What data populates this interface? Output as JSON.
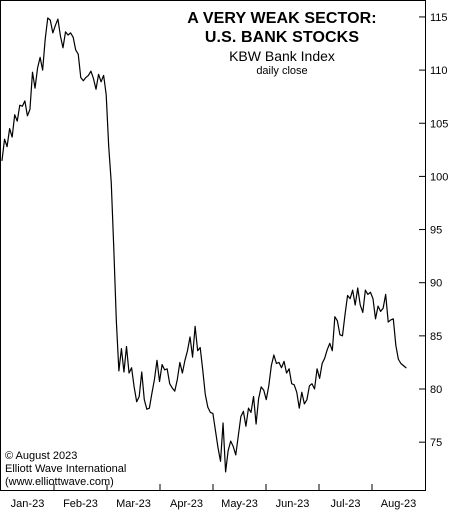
{
  "chart_data": {
    "type": "line",
    "title_lines": [
      "A VERY WEAK SECTOR:",
      "U.S. BANK STOCKS"
    ],
    "subtitle": "KBW Bank Index",
    "subtitle_small": "daily close",
    "xlabel": "",
    "ylabel": "",
    "x_tick_labels": [
      "Jan-23",
      "Feb-23",
      "Mar-23",
      "Apr-23",
      "May-23",
      "Jun-23",
      "Jul-23",
      "Aug-23"
    ],
    "y_ticks": [
      75,
      80,
      85,
      90,
      95,
      100,
      105,
      110,
      115
    ],
    "ylim": [
      70.5,
      116.5
    ],
    "y_axis_side": "right",
    "grid": false,
    "legend": "none",
    "line_color": "#000000",
    "series": [
      {
        "values": [
          101.5,
          103.5,
          102.8,
          104.5,
          103.7,
          105.8,
          105.2,
          106.7,
          106.6,
          107.1,
          105.7,
          106.3,
          109.8,
          108.3,
          110.2,
          111.2,
          110.0,
          112.9,
          114.9,
          114.7,
          113.5,
          114.2,
          114.8,
          113.2,
          112.1,
          113.6,
          113.3,
          113.5,
          113.1,
          111.9,
          111.5,
          109.3,
          109.0,
          109.3,
          109.5,
          109.9,
          109.2,
          108.2,
          109.6,
          108.9,
          109.5,
          107.7,
          102.8,
          99.4,
          93.2,
          86.4,
          81.7,
          83.8,
          81.6,
          84.0,
          81.5,
          82.0,
          80.2,
          78.8,
          79.3,
          81.6,
          79.0,
          78.1,
          78.2,
          79.6,
          80.9,
          82.7,
          80.7,
          82.3,
          81.8,
          81.9,
          80.5,
          80.1,
          79.8,
          80.9,
          82.5,
          81.5,
          82.7,
          83.6,
          84.9,
          83.0,
          85.9,
          83.6,
          83.9,
          81.8,
          79.5,
          78.3,
          77.8,
          77.7,
          76.1,
          74.5,
          73.2,
          76.8,
          72.2,
          74.2,
          75.1,
          74.6,
          73.8,
          75.6,
          77.4,
          77.9,
          76.5,
          78.2,
          77.8,
          79.3,
          76.7,
          79.1,
          80.2,
          79.9,
          79.0,
          80.3,
          82.2,
          83.2,
          82.4,
          82.5,
          82.0,
          82.6,
          81.5,
          81.9,
          80.5,
          80.4,
          79.7,
          78.2,
          79.7,
          78.6,
          79.0,
          80.3,
          80.5,
          80.0,
          81.9,
          81.0,
          82.4,
          82.9,
          83.7,
          84.3,
          83.6,
          86.8,
          86.4,
          85.1,
          85.0,
          87.0,
          88.8,
          88.5,
          89.3,
          87.9,
          89.5,
          87.9,
          87.2,
          89.3,
          88.9,
          89.1,
          88.5,
          86.6,
          87.8,
          87.3,
          87.6,
          88.9,
          86.3,
          86.5,
          86.6,
          84.1,
          82.8,
          82.4,
          82.2,
          82.0
        ]
      }
    ]
  },
  "credits": [
    "© August 2023",
    "Elliott Wave International",
    "(www.elliottwave.com)"
  ]
}
